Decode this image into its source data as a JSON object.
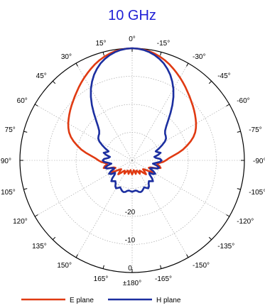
{
  "chart_data": {
    "type": "line",
    "polar": true,
    "title": "10 GHz",
    "angle_labels": [
      "0°",
      "15°",
      "30°",
      "45°",
      "60°",
      "75°",
      "90°",
      "105°",
      "120°",
      "135°",
      "150°",
      "165°",
      "±180°",
      "-165°",
      "-150°",
      "-135°",
      "-120°",
      "-105°",
      "-90°",
      "-75°",
      "-60°",
      "-45°",
      "-30°",
      "-15°"
    ],
    "angles_deg": [
      0,
      15,
      30,
      45,
      60,
      75,
      90,
      105,
      120,
      135,
      150,
      165,
      180,
      -165,
      -150,
      -135,
      -120,
      -105,
      -90,
      -75,
      -60,
      -45,
      -30,
      -15
    ],
    "radial_labels": [
      "0",
      "-10",
      "-20"
    ],
    "radial_values_db": [
      0,
      -10,
      -20
    ],
    "rlim_db": [
      -40,
      0
    ],
    "grid": true,
    "legend_position": "bottom",
    "series": [
      {
        "name": "E plane",
        "color": "#e03a12",
        "angles_deg": [
          0,
          3,
          6,
          9,
          12,
          15,
          18,
          21,
          24,
          27,
          30,
          33,
          36,
          39,
          42,
          45,
          48,
          51,
          54,
          57,
          60,
          63,
          66,
          69,
          72,
          75,
          78,
          81,
          84,
          87,
          90,
          93,
          96,
          99,
          102,
          105,
          108,
          111,
          114,
          117,
          120,
          123,
          126,
          129,
          132,
          135,
          138,
          141,
          144,
          147,
          150,
          153,
          156,
          159,
          162,
          165,
          168,
          171,
          174,
          177,
          180,
          -177,
          -174,
          -171,
          -168,
          -165,
          -162,
          -159,
          -156,
          -153,
          -150,
          -147,
          -144,
          -141,
          -138,
          -135,
          -132,
          -129,
          -126,
          -123,
          -120,
          -117,
          -114,
          -111,
          -108,
          -105,
          -102,
          -99,
          -96,
          -93,
          -90,
          -87,
          -84,
          -81,
          -78,
          -75,
          -72,
          -69,
          -66,
          -63,
          -60,
          -57,
          -54,
          -51,
          -48,
          -45,
          -42,
          -39,
          -36,
          -33,
          -30,
          -27,
          -24,
          -21,
          -18,
          -15,
          -12,
          -9,
          -6,
          -3
        ],
        "values_db": [
          0,
          -0.1,
          -0.3,
          -0.6,
          -1.1,
          -1.7,
          -2.4,
          -3.2,
          -4.1,
          -5,
          -5.9,
          -6.8,
          -7.7,
          -8.6,
          -9.4,
          -10.2,
          -10.9,
          -11.6,
          -12.3,
          -13,
          -13.7,
          -14.5,
          -15.4,
          -16.6,
          -18.1,
          -19.8,
          -21.5,
          -23.5,
          -25.5,
          -27,
          -28,
          -29,
          -30.5,
          -31,
          -30,
          -29.5,
          -31,
          -33,
          -33.5,
          -32,
          -31.5,
          -33,
          -34.5,
          -35,
          -34,
          -33,
          -34,
          -35,
          -35.5,
          -35,
          -34.5,
          -35.5,
          -36,
          -36,
          -35.5,
          -35,
          -36,
          -36.5,
          -36,
          -35.5,
          -35,
          -35.5,
          -36,
          -36.5,
          -36,
          -35,
          -35.5,
          -36,
          -36,
          -35.5,
          -34.5,
          -35,
          -35.5,
          -35,
          -34,
          -33,
          -34,
          -35,
          -34.5,
          -33,
          -31.5,
          -32,
          -33.5,
          -33,
          -31,
          -29.5,
          -30,
          -31,
          -30.5,
          -29,
          -28,
          -27,
          -25.5,
          -23.5,
          -21.5,
          -19.8,
          -18.1,
          -16.6,
          -15.4,
          -14.5,
          -13.7,
          -13,
          -12.3,
          -11.6,
          -10.9,
          -10.2,
          -9.4,
          -8.6,
          -7.7,
          -6.8,
          -5.9,
          -5,
          -4.1,
          -3.2,
          -2.4,
          -1.7,
          -1.1,
          -0.6,
          -0.3,
          -0.1
        ]
      },
      {
        "name": "H plane",
        "color": "#1c2fa0",
        "angles_deg": [
          0,
          3,
          6,
          9,
          12,
          15,
          18,
          21,
          24,
          27,
          30,
          33,
          36,
          39,
          42,
          45,
          48,
          51,
          54,
          57,
          60,
          63,
          66,
          69,
          72,
          75,
          78,
          81,
          84,
          87,
          90,
          93,
          96,
          99,
          102,
          105,
          108,
          111,
          114,
          117,
          120,
          123,
          126,
          129,
          132,
          135,
          138,
          141,
          144,
          147,
          150,
          153,
          156,
          159,
          162,
          165,
          168,
          171,
          174,
          177,
          180,
          -177,
          -174,
          -171,
          -168,
          -165,
          -162,
          -159,
          -156,
          -153,
          -150,
          -147,
          -144,
          -141,
          -138,
          -135,
          -132,
          -129,
          -126,
          -123,
          -120,
          -117,
          -114,
          -111,
          -108,
          -105,
          -102,
          -99,
          -96,
          -93,
          -90,
          -87,
          -84,
          -81,
          -78,
          -75,
          -72,
          -69,
          -66,
          -63,
          -60,
          -57,
          -54,
          -51,
          -48,
          -45,
          -42,
          -39,
          -36,
          -33,
          -30,
          -27,
          -24,
          -21,
          -18,
          -15,
          -12,
          -9,
          -6,
          -3
        ],
        "values_db": [
          0,
          -0.1,
          -0.4,
          -0.9,
          -1.6,
          -2.5,
          -3.6,
          -5,
          -6.6,
          -8.5,
          -10.6,
          -13,
          -15.6,
          -18.3,
          -20.8,
          -22.8,
          -24.2,
          -24.9,
          -25.2,
          -25.6,
          -26.5,
          -28,
          -29.5,
          -31,
          -30.5,
          -29.5,
          -30.5,
          -32,
          -31.5,
          -30,
          -29.5,
          -30,
          -31.5,
          -32.5,
          -31,
          -30,
          -30.5,
          -32.5,
          -33,
          -31.5,
          -30.5,
          -31,
          -32.5,
          -32,
          -30.5,
          -29.5,
          -30,
          -30.5,
          -30,
          -29,
          -28.5,
          -29,
          -29.5,
          -29,
          -28.5,
          -28.3,
          -28.5,
          -29,
          -29.2,
          -29,
          -28.8,
          -29,
          -29.2,
          -29,
          -28.5,
          -28.3,
          -28.5,
          -29,
          -29.5,
          -29,
          -28.5,
          -29,
          -30,
          -30.5,
          -30,
          -29.5,
          -30.5,
          -32,
          -32.5,
          -31,
          -30.5,
          -31.5,
          -33,
          -32.5,
          -30.5,
          -30,
          -31,
          -32.5,
          -31.5,
          -30,
          -29.5,
          -30,
          -31.5,
          -32,
          -30.5,
          -29.5,
          -30.5,
          -31,
          -29.5,
          -28,
          -26.5,
          -25.6,
          -25.2,
          -24.9,
          -24.2,
          -22.8,
          -20.8,
          -18.3,
          -15.6,
          -13,
          -10.6,
          -8.5,
          -6.6,
          -5,
          -3.6,
          -2.5,
          -1.6,
          -0.9,
          -0.4,
          -0.1
        ]
      }
    ]
  }
}
